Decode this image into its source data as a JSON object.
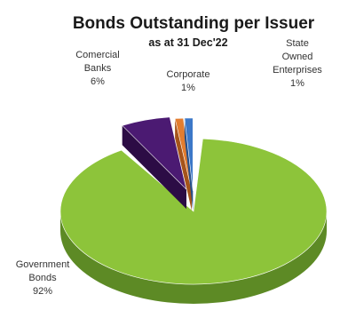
{
  "chart_data": {
    "type": "pie",
    "title": "Bonds Outstanding per Issuer",
    "subtitle": "as at 31 Dec'22",
    "slices": [
      {
        "label_lines": [
          "Government",
          "Bonds"
        ],
        "pct_label": "92%",
        "value": 92,
        "color": "#8dc43a",
        "side_color": "#5d8a25",
        "exploded": false
      },
      {
        "label_lines": [
          "Comercial",
          "Banks"
        ],
        "pct_label": "6%",
        "value": 6,
        "color": "#4b1a72",
        "side_color": "#2c0c45",
        "exploded": true
      },
      {
        "label_lines": [
          "Corporate"
        ],
        "pct_label": "1%",
        "value": 1,
        "color": "#e27d2f",
        "side_color": "#a5541a",
        "exploded": true
      },
      {
        "label_lines": [
          "State",
          "Owned",
          "Enterprises"
        ],
        "pct_label": "1%",
        "value": 1,
        "color": "#3c78c8",
        "side_color": "#26508a",
        "exploded": true
      }
    ]
  }
}
